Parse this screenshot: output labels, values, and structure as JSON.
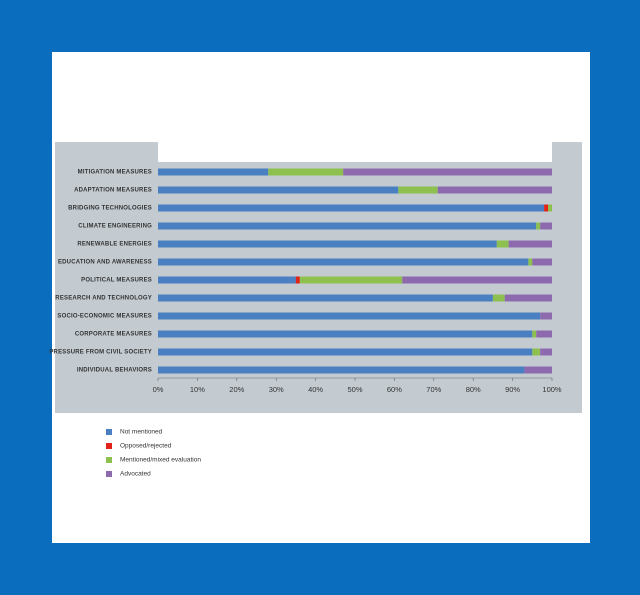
{
  "chart_data": {
    "type": "stacked-barh",
    "categories": [
      "MITIGATION MEASURES",
      "ADAPTATION MEASURES",
      "BRIDGING TECHNOLOGIES",
      "CLIMATE ENGINEERING",
      "RENEWABLE ENERGIES",
      "EDUCATION AND AWARENESS",
      "POLITICAL MEASURES",
      "RESEARCH AND TECHNOLOGY",
      "SOCIO-ECONOMIC MEASURES",
      "CORPORATE MEASURES",
      "PRESSURE FROM CIVIL SOCIETY",
      "INDIVIDUAL BEHAVIORS"
    ],
    "series": [
      {
        "name": "Not mentioned",
        "color": "#4a7fc1",
        "values": [
          28,
          61,
          98,
          96,
          86,
          94,
          35,
          85,
          97,
          95,
          95,
          93
        ]
      },
      {
        "name": "Opposed/rejected",
        "color": "#e2231a",
        "values": [
          0,
          0,
          1,
          0,
          0,
          0,
          1,
          0,
          0,
          0,
          0,
          0
        ]
      },
      {
        "name": "Mentioned/mixed evaluation",
        "color": "#8dc04f",
        "values": [
          19,
          10,
          1,
          1,
          3,
          1,
          26,
          3,
          0,
          1,
          2,
          0
        ]
      },
      {
        "name": "Advocated",
        "color": "#8d69ae",
        "values": [
          53,
          29,
          0,
          3,
          11,
          5,
          38,
          12,
          3,
          4,
          3,
          7
        ]
      }
    ],
    "xlim": [
      0,
      100
    ],
    "xticks": [
      {
        "value": 0,
        "label": "0%"
      },
      {
        "value": 10,
        "label": "10%"
      },
      {
        "value": 20,
        "label": "20%"
      },
      {
        "value": 30,
        "label": "30%"
      },
      {
        "value": 40,
        "label": "40%"
      },
      {
        "value": 50,
        "label": "50%"
      },
      {
        "value": 60,
        "label": "60%"
      },
      {
        "value": 70,
        "label": "70%"
      },
      {
        "value": 80,
        "label": "80%"
      },
      {
        "value": 90,
        "label": "90%"
      },
      {
        "value": 100,
        "label": "100%"
      }
    ]
  }
}
